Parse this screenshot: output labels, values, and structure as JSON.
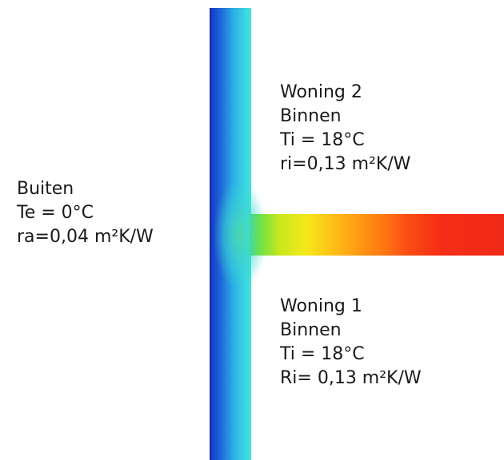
{
  "outside": {
    "title": "Buiten",
    "temperature": "Te = 0°C",
    "resistance": "ra=0,04 m²K/W"
  },
  "dwelling_2": {
    "title": "Woning 2",
    "subtitle": "Binnen",
    "temperature": "Ti = 18°C",
    "resistance": "ri=0,13 m²K/W"
  },
  "dwelling_1": {
    "title": "Woning 1",
    "subtitle": "Binnen",
    "temperature": "Ti = 18°C",
    "resistance": "Ri= 0,13 m²K/W"
  },
  "colors": {
    "exterior_wall_outer": "#1f3fcf",
    "exterior_wall_mid": "#2aa9e6",
    "exterior_wall_inner": "#3ee0e0",
    "junction_green": "#5ee05a",
    "partition_yellow": "#f5e61a",
    "partition_orange": "#ff7a10",
    "partition_red": "#f52a14"
  }
}
